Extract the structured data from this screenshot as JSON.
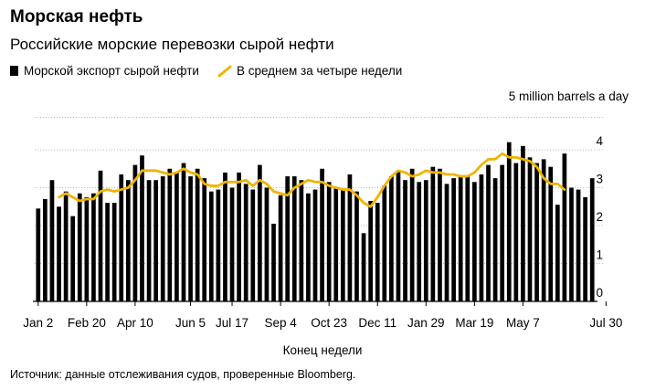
{
  "title": "Морская нефть",
  "subtitle": "Российские морские перевозки сырой нефти",
  "source": "Источник: данные отслеживания судов, проверенные Bloomberg.",
  "colors": {
    "bars": "#000000",
    "line": "#f0b400",
    "grid": "#bbbbbb"
  },
  "chart_data": {
    "type": "bar",
    "unit_label": "5 million barrels a day",
    "xlabel": "Конец недели",
    "ylim": [
      0,
      5
    ],
    "yticks": [
      "0",
      "1",
      "2",
      "3",
      "4"
    ],
    "xtick_labels": [
      "Jan 2",
      "Feb 20",
      "Apr 10",
      "Jun 5",
      "Jul 17",
      "Sep 4",
      "Oct 23",
      "Dec 11",
      "Jan 29",
      "Mar 19",
      "May 7",
      "Jul 30"
    ],
    "xtick_positions": [
      0,
      7,
      14,
      22,
      28,
      35,
      42,
      49,
      56,
      63,
      70,
      82
    ],
    "series": [
      {
        "name": "Морской экспорт сырой нефти",
        "kind": "bar",
        "values": [
          2.45,
          2.7,
          3.2,
          2.5,
          2.9,
          2.25,
          2.85,
          2.75,
          2.85,
          3.45,
          2.6,
          2.6,
          3.35,
          3.2,
          3.6,
          3.85,
          3.2,
          3.2,
          3.3,
          3.5,
          3.4,
          3.65,
          3.3,
          3.5,
          3.25,
          2.9,
          2.95,
          3.4,
          3.0,
          3.4,
          3.1,
          2.95,
          3.6,
          3.0,
          2.05,
          2.8,
          3.3,
          3.3,
          3.2,
          2.85,
          2.95,
          3.5,
          3.15,
          3.0,
          2.95,
          3.35,
          2.9,
          1.8,
          2.65,
          2.6,
          3.05,
          3.3,
          3.45,
          3.2,
          3.5,
          3.15,
          3.2,
          3.55,
          3.5,
          3.1,
          3.25,
          3.3,
          3.3,
          3.15,
          3.35,
          3.6,
          3.25,
          3.6,
          4.2,
          3.65,
          4.1,
          3.8,
          3.65,
          3.75,
          3.55,
          2.55,
          3.9,
          3.0,
          2.95,
          2.75,
          3.25
        ]
      },
      {
        "name": "В среднем за четыре недели",
        "kind": "line",
        "start_index": 3,
        "values": [
          2.75,
          2.85,
          2.75,
          2.65,
          2.7,
          2.7,
          2.9,
          2.95,
          2.9,
          2.95,
          3.0,
          3.2,
          3.45,
          3.45,
          3.45,
          3.4,
          3.35,
          3.4,
          3.5,
          3.4,
          3.35,
          3.1,
          3.05,
          3.05,
          3.15,
          3.15,
          3.15,
          3.2,
          3.05,
          3.2,
          3.1,
          2.9,
          2.85,
          2.8,
          3.0,
          3.1,
          3.2,
          3.15,
          3.15,
          3.05,
          3.0,
          2.95,
          2.95,
          2.8,
          2.6,
          2.5,
          2.75,
          3.05,
          3.3,
          3.45,
          3.4,
          3.3,
          3.35,
          3.45,
          3.4,
          3.4,
          3.35,
          3.35,
          3.3,
          3.3,
          3.4,
          3.6,
          3.75,
          3.75,
          3.9,
          3.8,
          3.8,
          3.75,
          3.7,
          3.55,
          3.25,
          3.1,
          3.1,
          2.95
        ]
      }
    ]
  }
}
